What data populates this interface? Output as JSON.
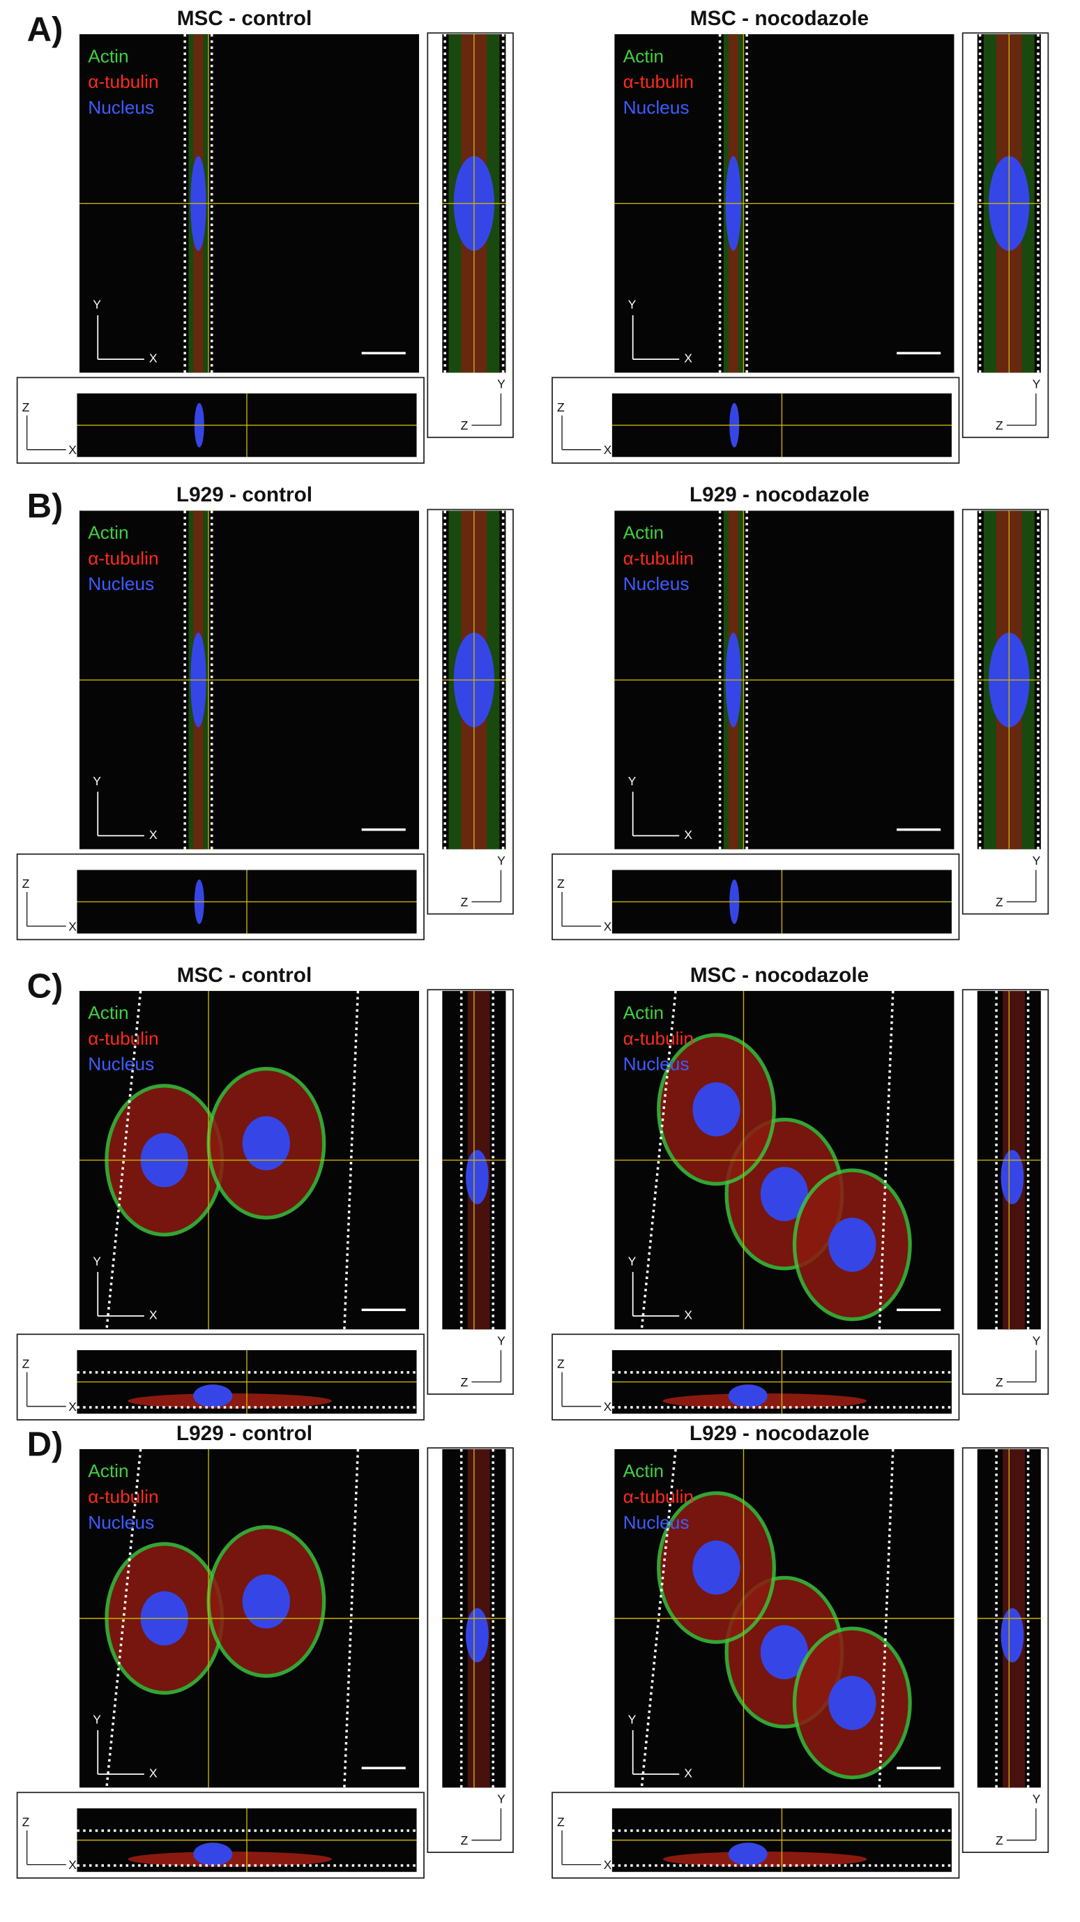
{
  "panels": [
    {
      "label": "A)",
      "images": [
        {
          "title": "MSC - control",
          "legend": [
            "Actin",
            "α-tubulin",
            "Nucleus"
          ],
          "main_axes": [
            "Y",
            "X"
          ],
          "xz_axes": [
            "Z",
            "X"
          ],
          "yz_axes": [
            "Y",
            "Z"
          ]
        },
        {
          "title": "MSC - nocodazole",
          "legend": [
            "Actin",
            "α-tubulin",
            "Nucleus"
          ],
          "main_axes": [
            "Y",
            "X"
          ],
          "xz_axes": [
            "Z",
            "X"
          ],
          "yz_axes": [
            "Y",
            "Z"
          ]
        }
      ]
    },
    {
      "label": "B)",
      "images": [
        {
          "title": "L929 - control",
          "legend": [
            "Actin",
            "α-tubulin",
            "Nucleus"
          ],
          "main_axes": [
            "Y",
            "X"
          ],
          "xz_axes": [
            "Z",
            "X"
          ],
          "yz_axes": [
            "Y",
            "Z"
          ]
        },
        {
          "title": "L929 - nocodazole",
          "legend": [
            "Actin",
            "α-tubulin",
            "Nucleus"
          ],
          "main_axes": [
            "Y",
            "X"
          ],
          "xz_axes": [
            "Z",
            "X"
          ],
          "yz_axes": [
            "Y",
            "Z"
          ]
        }
      ]
    },
    {
      "label": "C)",
      "images": [
        {
          "title": "MSC - control",
          "legend": [
            "Actin",
            "α-tubulin",
            "Nucleus"
          ],
          "main_axes": [
            "Y",
            "X"
          ],
          "xz_axes": [
            "Z",
            "X"
          ],
          "yz_axes": [
            "Y",
            "Z"
          ]
        },
        {
          "title": "MSC - nocodazole",
          "legend": [
            "Actin",
            "α-tubulin",
            "Nucleus"
          ],
          "main_axes": [
            "Y",
            "X"
          ],
          "xz_axes": [
            "Z",
            "X"
          ],
          "yz_axes": [
            "Y",
            "Z"
          ]
        }
      ]
    },
    {
      "label": "D)",
      "images": [
        {
          "title": "L929 - control",
          "legend": [
            "Actin",
            "α-tubulin",
            "Nucleus"
          ],
          "main_axes": [
            "Y",
            "X"
          ],
          "xz_axes": [
            "Z",
            "X"
          ],
          "yz_axes": [
            "Y",
            "Z"
          ]
        },
        {
          "title": "L929 - nocodazole",
          "legend": [
            "Actin",
            "α-tubulin",
            "Nucleus"
          ],
          "main_axes": [
            "Y",
            "X"
          ],
          "xz_axes": [
            "Z",
            "X"
          ],
          "yz_axes": [
            "Y",
            "Z"
          ]
        }
      ]
    }
  ]
}
